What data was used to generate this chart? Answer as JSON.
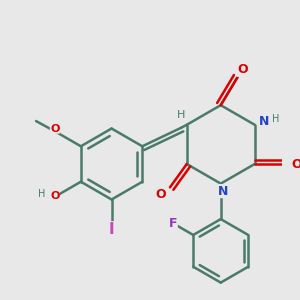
{
  "bg_color": "#e8e8e8",
  "bond_color": "#4a7a6a",
  "bond_width": 1.8,
  "atom_colors": {
    "O": "#dd0000",
    "N": "#2244cc",
    "I": "#cc44bb",
    "F": "#9933cc",
    "H": "#4a7a6a",
    "C": "#4a7a6a"
  }
}
